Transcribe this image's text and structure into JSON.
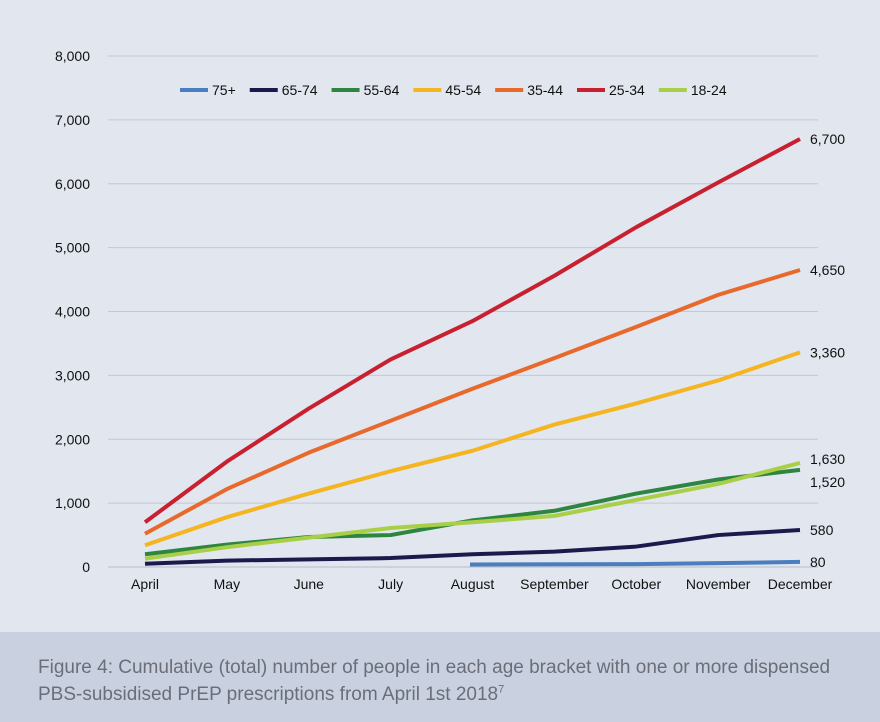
{
  "chart_data": {
    "type": "line",
    "categories": [
      "April",
      "May",
      "June",
      "July",
      "August",
      "September",
      "October",
      "November",
      "December"
    ],
    "ylim": [
      0,
      8000
    ],
    "yticks": [
      "0",
      "1,000",
      "2,000",
      "3,000",
      "4,000",
      "5,000",
      "6,000",
      "7,000",
      "8,000"
    ],
    "ytick_values": [
      0,
      1000,
      2000,
      3000,
      4000,
      5000,
      6000,
      7000,
      8000
    ],
    "grid": true,
    "legend_position": "top",
    "series": [
      {
        "name": "75+",
        "color": "#4a7ebf",
        "start_index": 5,
        "values": [
          null,
          null,
          null,
          null,
          null,
          40,
          45,
          60,
          80
        ],
        "end_label": "80"
      },
      {
        "name": "65-74",
        "color": "#1c1a4d",
        "start_index": 0,
        "values": [
          50,
          100,
          120,
          140,
          200,
          240,
          320,
          500,
          580
        ],
        "end_label": "580"
      },
      {
        "name": "55-64",
        "color": "#2e8540",
        "start_index": 0,
        "values": [
          200,
          350,
          470,
          500,
          730,
          880,
          1150,
          1370,
          1520
        ],
        "end_label": "1,520"
      },
      {
        "name": "45-54",
        "color": "#f5b521",
        "start_index": 0,
        "values": [
          340,
          780,
          1150,
          1500,
          1820,
          2230,
          2560,
          2920,
          3360
        ],
        "end_label": "3,360"
      },
      {
        "name": "35-44",
        "color": "#e8692c",
        "start_index": 0,
        "values": [
          520,
          1220,
          1790,
          2290,
          2790,
          3270,
          3760,
          4260,
          4650
        ],
        "end_label": "4,650"
      },
      {
        "name": "25-34",
        "color": "#c8202f",
        "start_index": 0,
        "values": [
          700,
          1650,
          2480,
          3250,
          3850,
          4560,
          5320,
          6020,
          6700
        ],
        "end_label": "6,700"
      },
      {
        "name": "18-24",
        "color": "#a9cf46",
        "start_index": 0,
        "values": [
          130,
          310,
          460,
          610,
          700,
          800,
          1050,
          1300,
          1630
        ],
        "end_label": "1,630"
      }
    ]
  },
  "caption": {
    "text": "Figure 4: Cumulative (total) number of people in each age bracket with one or more dispensed PBS-subsidised PrEP prescriptions from April 1st 2018",
    "footnote": "7"
  }
}
